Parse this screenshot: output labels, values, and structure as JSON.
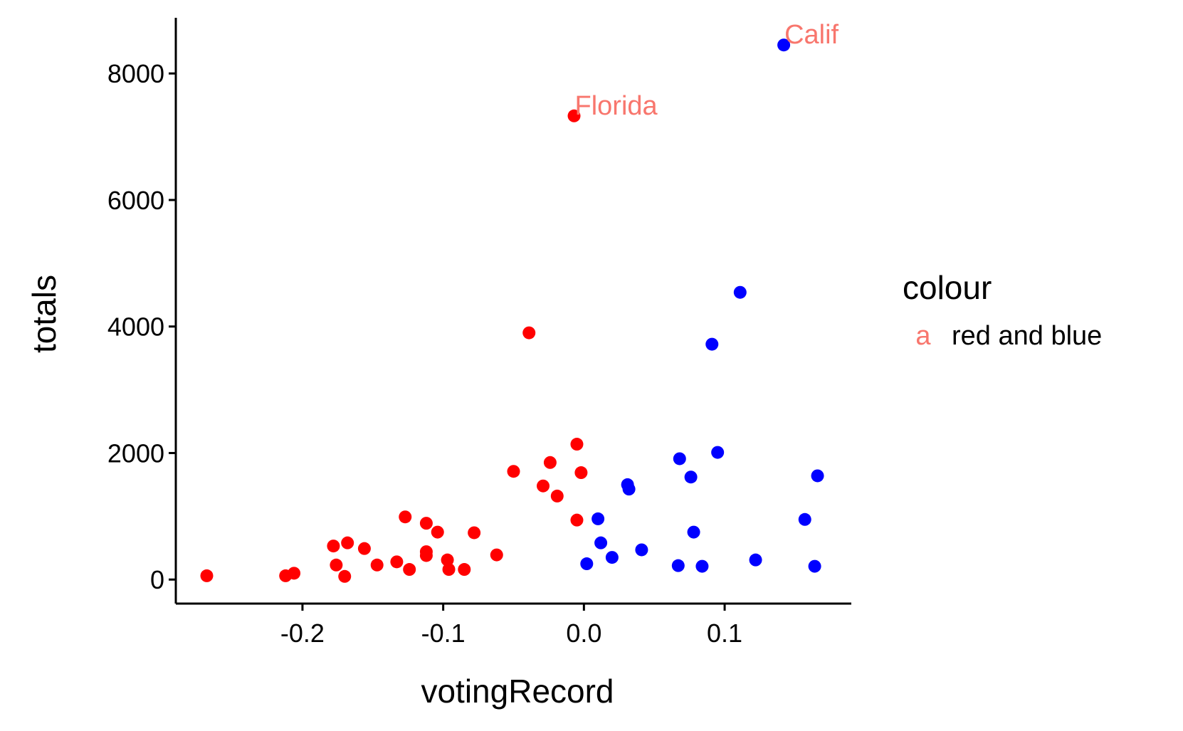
{
  "chart_data": {
    "type": "scatter",
    "xlabel": "votingRecord",
    "ylabel": "totals",
    "xlim": [
      -0.29,
      0.19
    ],
    "ylim": [
      -380,
      8880
    ],
    "x_ticks": [
      -0.2,
      -0.1,
      0.0,
      0.1
    ],
    "x_tick_labels": [
      "-0.2",
      "-0.1",
      "0.0",
      "0.1"
    ],
    "y_ticks": [
      0,
      2000,
      4000,
      6000,
      8000
    ],
    "y_tick_labels": [
      "0",
      "2000",
      "4000",
      "6000",
      "8000"
    ],
    "grid": false,
    "legend": {
      "title": "colour",
      "position": "right",
      "entries": [
        {
          "key": "a",
          "label": "red and blue",
          "color": "#F8766D"
        }
      ]
    },
    "annotations": [
      {
        "text": "Calif",
        "x": 0.142,
        "y": 8450,
        "color": "#F8766D"
      },
      {
        "text": "Florida",
        "x": -0.007,
        "y": 7330,
        "color": "#F8766D"
      }
    ],
    "series": [
      {
        "color": "#FF0000",
        "points": [
          [
            -0.268,
            60
          ],
          [
            -0.212,
            60
          ],
          [
            -0.206,
            100
          ],
          [
            -0.178,
            530
          ],
          [
            -0.176,
            230
          ],
          [
            -0.17,
            50
          ],
          [
            -0.168,
            580
          ],
          [
            -0.156,
            490
          ],
          [
            -0.147,
            230
          ],
          [
            -0.133,
            280
          ],
          [
            -0.127,
            990
          ],
          [
            -0.124,
            160
          ],
          [
            -0.112,
            890
          ],
          [
            -0.112,
            440
          ],
          [
            -0.112,
            380
          ],
          [
            -0.104,
            750
          ],
          [
            -0.097,
            310
          ],
          [
            -0.096,
            160
          ],
          [
            -0.085,
            160
          ],
          [
            -0.078,
            740
          ],
          [
            -0.062,
            390
          ],
          [
            -0.05,
            1710
          ],
          [
            -0.039,
            3900
          ],
          [
            -0.029,
            1480
          ],
          [
            -0.024,
            1850
          ],
          [
            -0.019,
            1320
          ],
          [
            -0.007,
            7330
          ],
          [
            -0.005,
            940
          ],
          [
            -0.005,
            2140
          ],
          [
            -0.002,
            1690
          ]
        ]
      },
      {
        "color": "#0000FF",
        "points": [
          [
            0.002,
            250
          ],
          [
            0.01,
            960
          ],
          [
            0.012,
            580
          ],
          [
            0.02,
            350
          ],
          [
            0.031,
            1500
          ],
          [
            0.032,
            1430
          ],
          [
            0.041,
            470
          ],
          [
            0.067,
            220
          ],
          [
            0.068,
            1910
          ],
          [
            0.076,
            1620
          ],
          [
            0.078,
            750
          ],
          [
            0.084,
            210
          ],
          [
            0.091,
            3720
          ],
          [
            0.095,
            2010
          ],
          [
            0.111,
            4540
          ],
          [
            0.122,
            310
          ],
          [
            0.142,
            8450
          ],
          [
            0.157,
            950
          ],
          [
            0.164,
            210
          ],
          [
            0.166,
            1640
          ]
        ]
      }
    ]
  }
}
